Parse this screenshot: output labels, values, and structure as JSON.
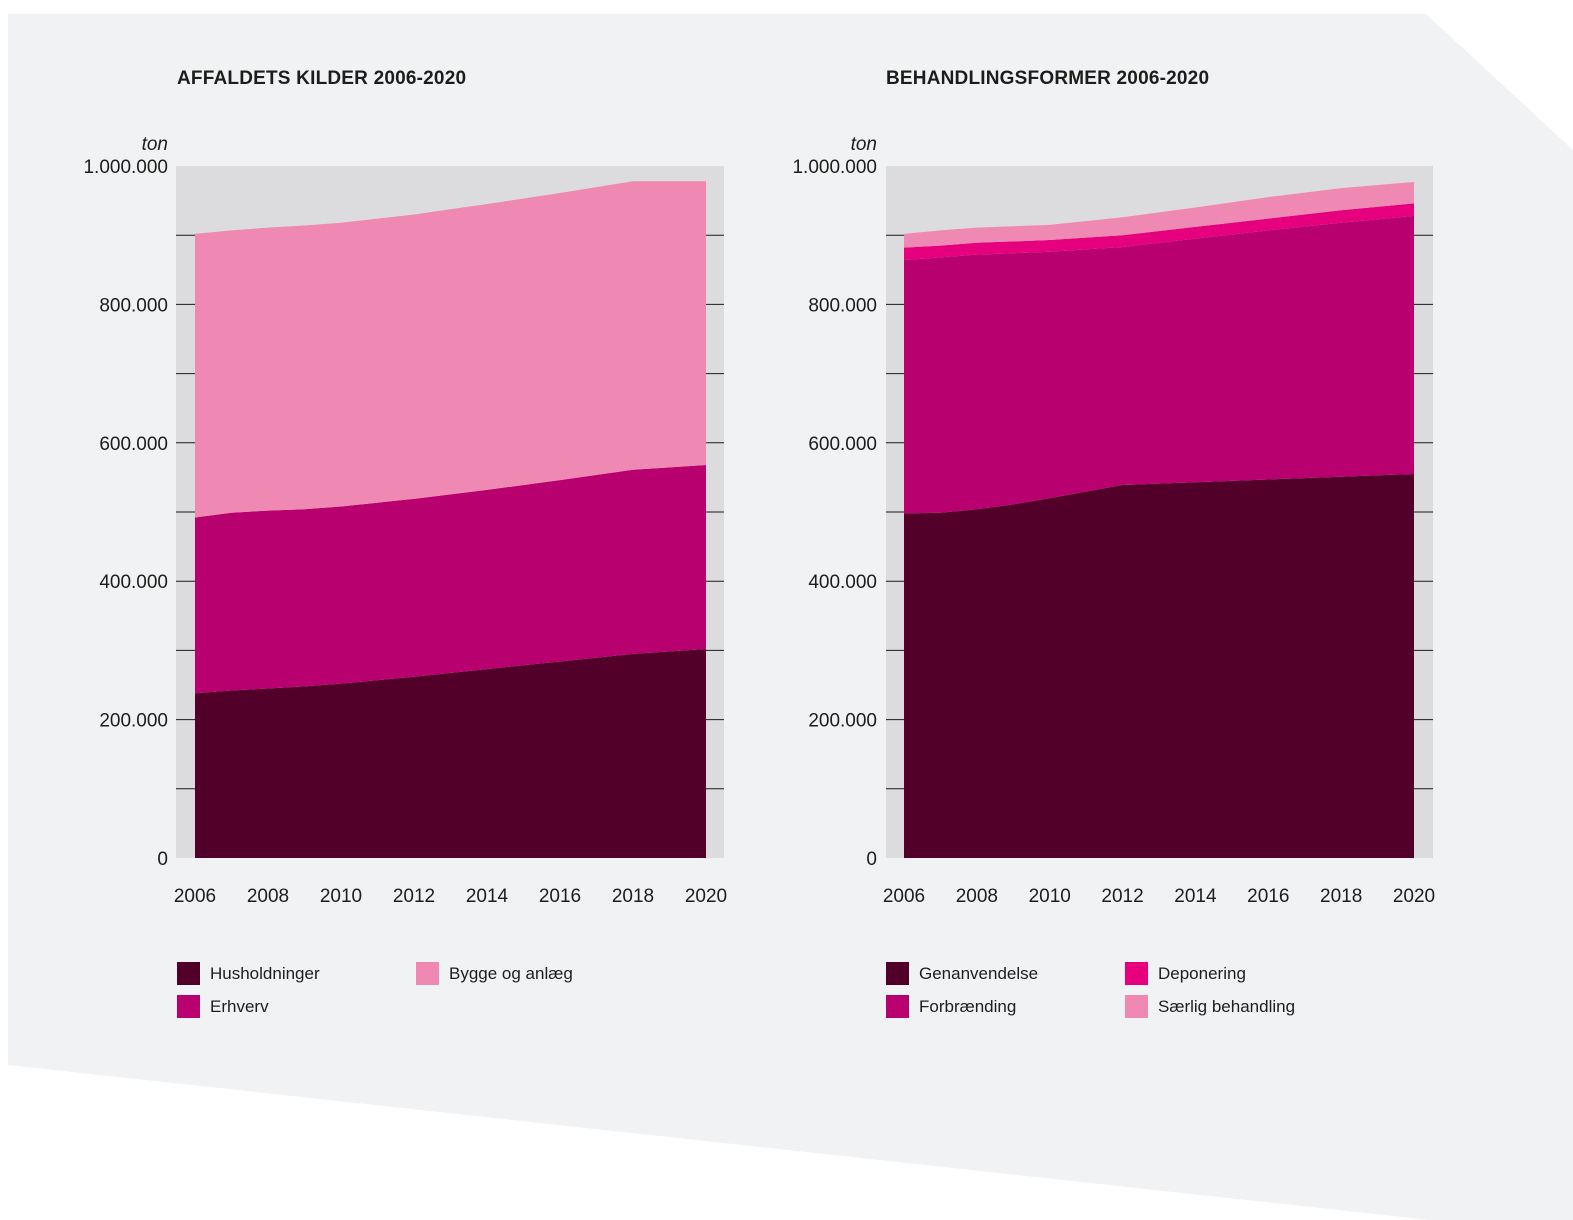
{
  "colors": {
    "page_bg": "#f1f2f4",
    "plot_bg": "#dcdcde",
    "gridline": "#1d1d1b",
    "text": "#1d1d1b"
  },
  "chart_data": [
    {
      "type": "area",
      "stacked": true,
      "title": "AFFALDETS KILDER 2006-2020",
      "ylabel": "ton",
      "ylim": [
        0,
        1000000
      ],
      "yticks": [
        "0",
        "200.000",
        "400.000",
        "600.000",
        "800.000",
        "1.000.000"
      ],
      "xticks": [
        "2006",
        "2008",
        "2010",
        "2012",
        "2014",
        "2016",
        "2018",
        "2020"
      ],
      "x": [
        2006,
        2007,
        2008,
        2009,
        2010,
        2012,
        2014,
        2016,
        2018,
        2020
      ],
      "grid": true,
      "legend_position": "bottom",
      "series": [
        {
          "name": "Husholdninger",
          "color": "#52002a",
          "values": [
            238000,
            242000,
            245000,
            248000,
            252000,
            262000,
            273000,
            284000,
            295000,
            302000
          ]
        },
        {
          "name": "Erhverv",
          "color": "#b8006e",
          "values": [
            254000,
            257000,
            257000,
            256000,
            256000,
            257000,
            259000,
            262000,
            266000,
            266000
          ]
        },
        {
          "name": "Bygge og anlæg",
          "color": "#f088b4",
          "values": [
            410000,
            408000,
            409000,
            410000,
            410000,
            411000,
            413000,
            415000,
            417000,
            410000
          ]
        }
      ]
    },
    {
      "type": "area",
      "stacked": true,
      "title": "BEHANDLINGSFORMER 2006-2020",
      "ylabel": "ton",
      "ylim": [
        0,
        1000000
      ],
      "yticks": [
        "0",
        "200.000",
        "400.000",
        "600.000",
        "800.000",
        "1.000.000"
      ],
      "xticks": [
        "2006",
        "2008",
        "2010",
        "2012",
        "2014",
        "2016",
        "2018",
        "2020"
      ],
      "x": [
        2006,
        2007,
        2008,
        2009,
        2010,
        2012,
        2014,
        2016,
        2018,
        2020
      ],
      "grid": true,
      "legend_position": "bottom",
      "series": [
        {
          "name": "Genanvendelse",
          "color": "#52002a",
          "values": [
            498000,
            499000,
            504000,
            511000,
            520000,
            539000,
            543000,
            547000,
            551000,
            555000
          ]
        },
        {
          "name": "Forbrænding",
          "color": "#b8006e",
          "values": [
            366000,
            369000,
            368000,
            363000,
            356000,
            344000,
            352000,
            360000,
            367000,
            373000
          ]
        },
        {
          "name": "Deponering",
          "color": "#e6007e",
          "values": [
            18000,
            17000,
            17000,
            17000,
            17000,
            17000,
            17000,
            17000,
            18000,
            18000
          ]
        },
        {
          "name": "Særlig behandling",
          "color": "#f088b4",
          "values": [
            20000,
            22000,
            22000,
            22000,
            22000,
            26000,
            28000,
            31000,
            32000,
            31000
          ]
        }
      ]
    }
  ],
  "legends": [
    {
      "items": [
        "Husholdninger",
        "Erhverv",
        "Bygge og anlæg"
      ]
    },
    {
      "items": [
        "Genanvendelse",
        "Forbrænding",
        "Deponering",
        "Særlig behandling"
      ]
    }
  ]
}
